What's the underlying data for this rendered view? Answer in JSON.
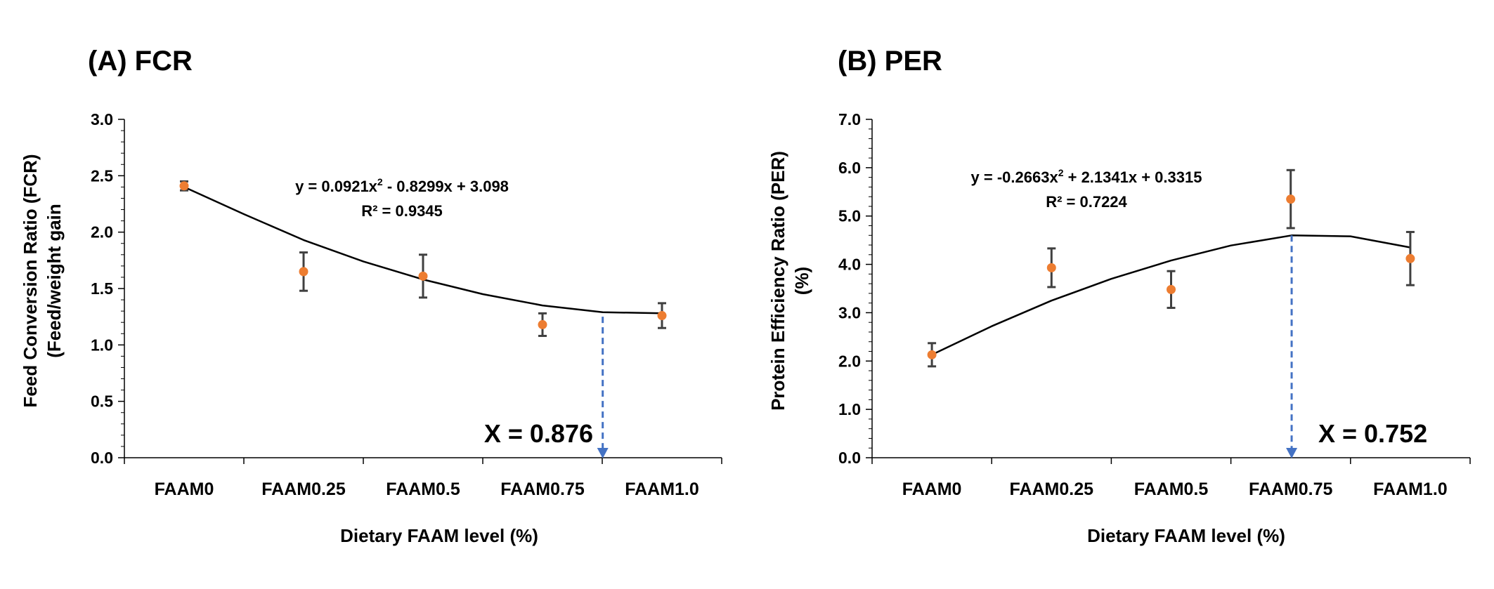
{
  "colors": {
    "marker": "#ED7D31",
    "fit_line": "#000000",
    "error_bar": "#404040",
    "arrow": "#4472C4",
    "axis": "#000000"
  },
  "chart_data": [
    {
      "type": "scatter",
      "panel_title": "(A) FCR",
      "xlabel": "Dietary FAAM level (%)",
      "ylabel_line1": "Feed Conversion Ratio (FCR)",
      "ylabel_line2": "(Feed/weight gain",
      "categories": [
        "FAAM0",
        "FAAM0.25",
        "FAAM0.5",
        "FAAM0.75",
        "FAAM1.0"
      ],
      "x_levels": [
        0,
        0.25,
        0.5,
        0.75,
        1.0
      ],
      "values": [
        2.41,
        1.65,
        1.61,
        1.18,
        1.26
      ],
      "errors": [
        0.04,
        0.17,
        0.19,
        0.1,
        0.11
      ],
      "ylim": [
        0,
        3.0
      ],
      "ytick_step": 0.5,
      "yticks": [
        "0.0",
        "0.5",
        "1.0",
        "1.5",
        "2.0",
        "2.5",
        "3.0"
      ],
      "fit": {
        "a": 0.0921,
        "b": -0.8299,
        "c": 3.098
      },
      "fit_curve_points": [
        [
          0,
          2.4
        ],
        [
          0.125,
          2.16
        ],
        [
          0.25,
          1.93
        ],
        [
          0.375,
          1.74
        ],
        [
          0.5,
          1.58
        ],
        [
          0.625,
          1.45
        ],
        [
          0.75,
          1.35
        ],
        [
          0.876,
          1.29
        ],
        [
          1.0,
          1.28
        ]
      ],
      "equation": "y = 0.0921x",
      "equation_sup": "2",
      "equation_rest": " - 0.8299x + 3.098",
      "r_squared": "R² = 0.9345",
      "optimum_x": 0.876,
      "optimum_y": 1.25,
      "optimum_label": "X = 0.876"
    },
    {
      "type": "scatter",
      "panel_title": "(B) PER",
      "xlabel": "Dietary FAAM level (%)",
      "ylabel_line1": "Protein Efficiency Ratio (PER)",
      "ylabel_line2": "(%)",
      "categories": [
        "FAAM0",
        "FAAM0.25",
        "FAAM0.5",
        "FAAM0.75",
        "FAAM1.0"
      ],
      "x_levels": [
        0,
        0.25,
        0.5,
        0.75,
        1.0
      ],
      "values": [
        2.13,
        3.93,
        3.48,
        5.35,
        4.12
      ],
      "errors": [
        0.24,
        0.4,
        0.38,
        0.6,
        0.55
      ],
      "ylim": [
        0,
        7.0
      ],
      "ytick_step": 1.0,
      "yticks": [
        "0.0",
        "1.0",
        "2.0",
        "3.0",
        "4.0",
        "5.0",
        "6.0",
        "7.0"
      ],
      "fit": {
        "a": -0.2663,
        "b": 2.1341,
        "c": 0.3315
      },
      "fit_curve_points": [
        [
          0,
          2.13
        ],
        [
          0.125,
          2.72
        ],
        [
          0.25,
          3.25
        ],
        [
          0.375,
          3.7
        ],
        [
          0.5,
          4.08
        ],
        [
          0.625,
          4.39
        ],
        [
          0.752,
          4.6
        ],
        [
          0.875,
          4.58
        ],
        [
          1.0,
          4.35
        ]
      ],
      "equation": "y = -0.2663x",
      "equation_sup": "2",
      "equation_rest": " + 2.1341x + 0.3315",
      "r_squared": "R² = 0.7224",
      "optimum_x": 0.752,
      "optimum_y": 4.6,
      "optimum_label": "X = 0.752"
    }
  ]
}
